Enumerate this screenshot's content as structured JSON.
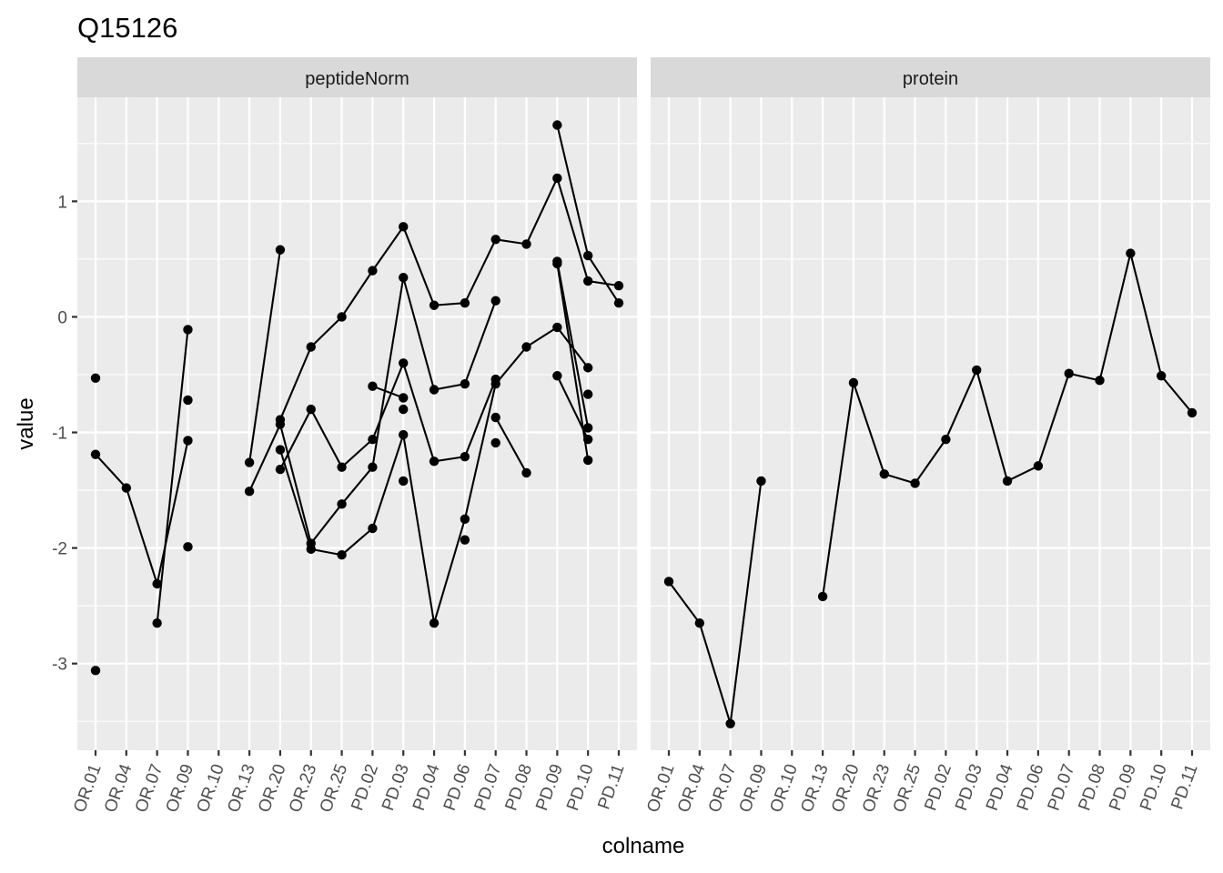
{
  "chart_data": {
    "type": "line",
    "title": "Q15126",
    "xlabel": "colname",
    "ylabel": "value",
    "ylim": [
      -3.75,
      1.9
    ],
    "y_ticks": [
      -3,
      -2,
      -1,
      0,
      1
    ],
    "grid": true,
    "categories": [
      "OR.01",
      "OR.04",
      "OR.07",
      "OR.09",
      "OR.10",
      "OR.13",
      "OR.20",
      "OR.23",
      "OR.25",
      "PD.02",
      "PD.03",
      "PD.04",
      "PD.06",
      "PD.07",
      "PD.08",
      "PD.09",
      "PD.10",
      "PD.11"
    ],
    "facets": [
      {
        "label": "peptideNorm",
        "series": [
          {
            "values": [
              -1.19,
              -1.48,
              -2.31,
              -1.07,
              null,
              -1.26,
              0.58,
              null,
              null,
              null,
              null,
              null,
              null,
              null,
              null,
              null,
              null,
              null
            ]
          },
          {
            "values": [
              -0.53,
              null,
              -2.65,
              -0.11,
              null,
              -1.51,
              -0.93,
              -1.96,
              -1.62,
              -1.3,
              0.34,
              -0.63,
              -0.58,
              0.14,
              null,
              0.46,
              -1.24,
              null
            ]
          },
          {
            "values": [
              -3.06,
              null,
              null,
              -1.99,
              null,
              null,
              -1.15,
              -2.01,
              -2.06,
              -1.83,
              -1.02,
              -2.65,
              -1.75,
              -0.58,
              -0.26,
              -0.09,
              -0.44,
              null
            ]
          },
          {
            "values": [
              null,
              null,
              null,
              -0.72,
              null,
              null,
              -1.32,
              -0.8,
              -1.3,
              -1.06,
              -0.4,
              -1.25,
              -1.21,
              -0.54,
              null,
              -0.51,
              -1.06,
              null
            ]
          },
          {
            "values": [
              null,
              null,
              null,
              null,
              null,
              null,
              -0.89,
              -0.26,
              0.0,
              0.4,
              0.78,
              0.1,
              0.12,
              0.67,
              0.63,
              1.2,
              0.31,
              0.27
            ]
          },
          {
            "values": [
              null,
              null,
              null,
              null,
              null,
              null,
              null,
              null,
              null,
              -0.6,
              -0.7,
              null,
              null,
              null,
              null,
              1.66,
              0.53,
              0.12
            ]
          },
          {
            "values": [
              null,
              null,
              null,
              null,
              null,
              null,
              null,
              null,
              null,
              null,
              -0.8,
              null,
              null,
              null,
              null,
              null,
              null,
              null
            ]
          },
          {
            "values": [
              null,
              null,
              null,
              null,
              null,
              null,
              null,
              null,
              null,
              null,
              -1.42,
              null,
              null,
              null,
              null,
              null,
              null,
              null
            ]
          },
          {
            "values": [
              null,
              null,
              null,
              null,
              null,
              null,
              null,
              null,
              null,
              null,
              null,
              null,
              -1.93,
              null,
              null,
              null,
              null,
              null
            ]
          },
          {
            "values": [
              null,
              null,
              null,
              null,
              null,
              null,
              null,
              null,
              null,
              null,
              null,
              null,
              null,
              -0.87,
              -1.35,
              null,
              null,
              null
            ]
          },
          {
            "values": [
              null,
              null,
              null,
              null,
              null,
              null,
              null,
              null,
              null,
              null,
              null,
              null,
              null,
              -1.09,
              null,
              null,
              null,
              null
            ]
          },
          {
            "values": [
              null,
              null,
              null,
              null,
              null,
              null,
              null,
              null,
              null,
              null,
              null,
              null,
              null,
              null,
              null,
              0.48,
              -0.96,
              null
            ]
          },
          {
            "values": [
              null,
              null,
              null,
              null,
              null,
              null,
              null,
              null,
              null,
              null,
              null,
              null,
              null,
              null,
              null,
              null,
              -0.67,
              null
            ]
          }
        ]
      },
      {
        "label": "protein",
        "series": [
          {
            "values": [
              -2.29,
              -2.65,
              -3.52,
              -1.42,
              null,
              -2.42,
              -0.57,
              -1.36,
              -1.44,
              -1.06,
              -0.46,
              -1.42,
              -1.29,
              -0.49,
              -0.55,
              0.55,
              -0.51,
              -0.83
            ]
          }
        ]
      }
    ]
  }
}
